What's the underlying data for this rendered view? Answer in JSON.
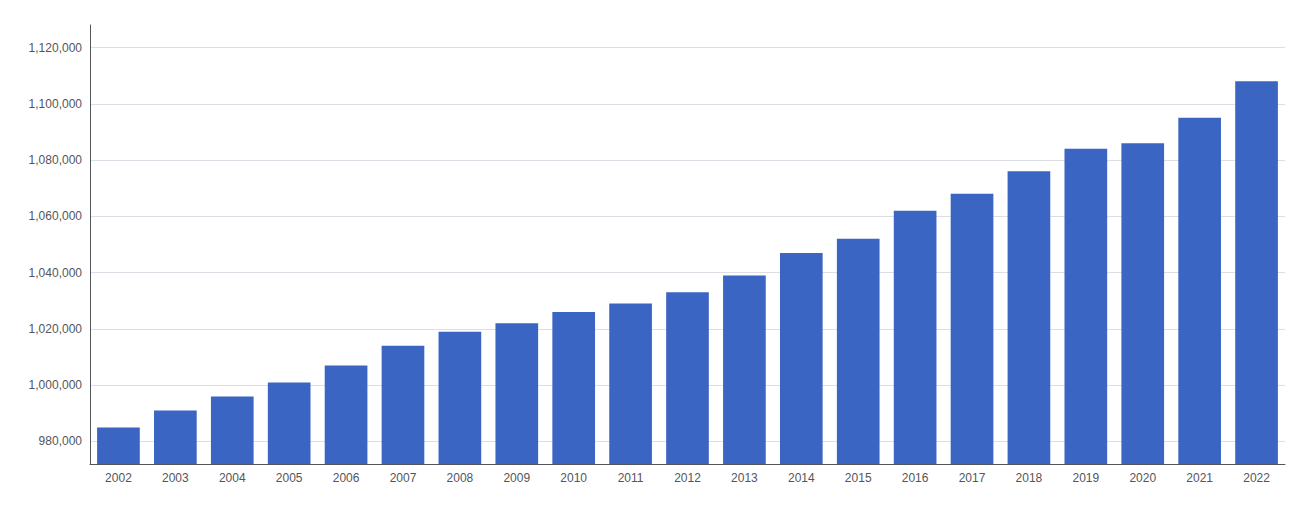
{
  "chart_data": {
    "type": "bar",
    "categories": [
      "2002",
      "2003",
      "2004",
      "2005",
      "2006",
      "2007",
      "2008",
      "2009",
      "2010",
      "2011",
      "2012",
      "2013",
      "2014",
      "2015",
      "2016",
      "2017",
      "2018",
      "2019",
      "2020",
      "2021",
      "2022"
    ],
    "values": [
      985000,
      991000,
      996000,
      1001000,
      1007000,
      1014000,
      1019000,
      1022000,
      1026000,
      1029000,
      1033000,
      1039000,
      1047000,
      1052000,
      1062000,
      1068000,
      1076000,
      1084000,
      1086000,
      1095000,
      1108000
    ],
    "color": "#3a65c3",
    "ylim": [
      972000,
      1128000
    ],
    "yticks": [
      {
        "value": 980000,
        "label": "980,000"
      },
      {
        "value": 1000000,
        "label": "1,000,000"
      },
      {
        "value": 1020000,
        "label": "1,020,000"
      },
      {
        "value": 1040000,
        "label": "1,040,000"
      },
      {
        "value": 1060000,
        "label": "1,060,000"
      },
      {
        "value": 1080000,
        "label": "1,080,000"
      },
      {
        "value": 1100000,
        "label": "1,100,000"
      },
      {
        "value": 1120000,
        "label": "1,120,000"
      }
    ],
    "grid": true
  }
}
